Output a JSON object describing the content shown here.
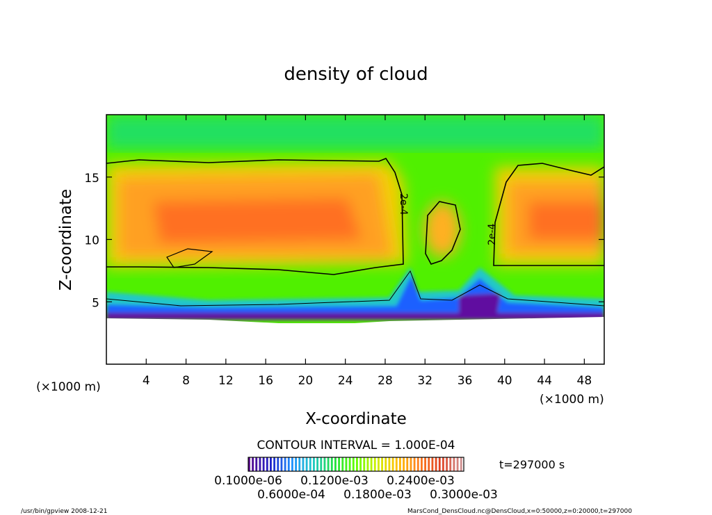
{
  "chart_data": {
    "type": "heatmap",
    "title": "density of cloud",
    "xlabel": "X-coordinate",
    "ylabel": "Z-coordinate",
    "x_unit": "(×1000 m)",
    "y_unit": "(×1000 m)",
    "xlim": [
      0,
      50
    ],
    "ylim": [
      0,
      20
    ],
    "xticks": [
      4,
      8,
      12,
      16,
      20,
      24,
      28,
      32,
      36,
      40,
      44,
      48
    ],
    "yticks": [
      5,
      10,
      15
    ],
    "contour_interval_text": "CONTOUR INTERVAL = 1.000E-04",
    "contour_labels": [
      "2e-4",
      "2e-4"
    ],
    "colorbar_labels": [
      "0.1000e-06",
      "0.6000e-04",
      "0.1200e-03",
      "0.1800e-03",
      "0.2400e-03",
      "0.3000e-03"
    ],
    "colorbar_range": [
      1e-07,
      0.0003
    ],
    "colormap": [
      "#5a0a8c",
      "#2020c8",
      "#1e90ff",
      "#20c8c8",
      "#20e040",
      "#60ff00",
      "#d0f000",
      "#ffc000",
      "#ff8020",
      "#e04020",
      "#d09090"
    ],
    "time_label": "t=297000 s"
  },
  "footer": {
    "left": "/usr/bin/gpview   2008-12-21",
    "right": "MarsCond_DensCloud.nc@DensCloud,x=0:50000,z=0:20000,t=297000"
  }
}
